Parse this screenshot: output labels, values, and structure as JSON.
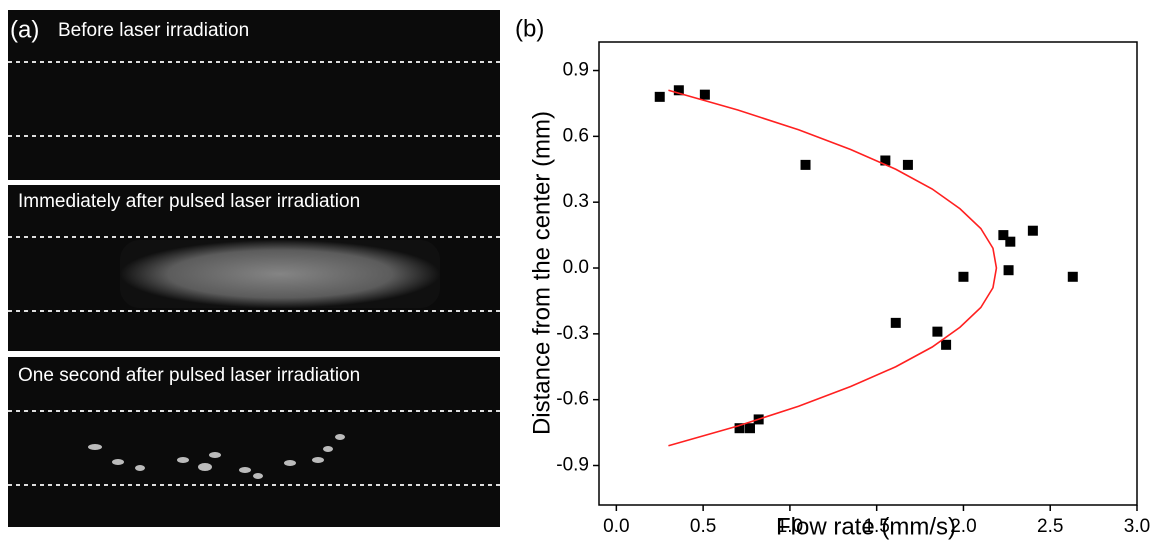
{
  "panel_a": {
    "label": "(a)",
    "captions": [
      "Before laser irradiation",
      "Immediately after pulsed laser irradiation",
      "One second after pulsed laser irradiation"
    ]
  },
  "chart_data": {
    "type": "scatter",
    "label": "(b)",
    "xlabel": "Flow rate (mm/s)",
    "ylabel": "Distance from the center (mm)",
    "xlim": [
      -0.1,
      3.0
    ],
    "ylim": [
      -1.08,
      1.03
    ],
    "xticks": [
      {
        "value": 0,
        "label": "0.0"
      },
      0.5,
      {
        "value": 1,
        "label": "1.0"
      },
      1.5,
      {
        "value": 2,
        "label": "2.0"
      },
      2.5,
      {
        "value": 3,
        "label": "3.0"
      }
    ],
    "yticks": [
      -0.9,
      -0.6,
      -0.3,
      {
        "value": 0,
        "label": "0.0"
      },
      0.3,
      0.6,
      0.9
    ],
    "series": [
      {
        "color": "#000000",
        "marker": "square",
        "x": [
          0.25,
          0.36,
          0.51,
          1.09,
          1.55,
          1.68,
          2.23,
          2.27,
          2.4,
          2.26,
          2.0,
          2.63,
          1.61,
          1.85,
          1.9,
          0.71,
          0.77,
          0.82
        ],
        "values": [
          0.78,
          0.81,
          0.79,
          0.47,
          0.49,
          0.47,
          0.15,
          0.12,
          0.17,
          -0.01,
          -0.04,
          -0.04,
          -0.25,
          -0.29,
          -0.35,
          -0.73,
          -0.73,
          -0.69
        ]
      },
      {
        "color": "#ff2020",
        "marker": "line",
        "x": [
          0.3,
          0.7,
          1.05,
          1.35,
          1.61,
          1.82,
          1.98,
          2.1,
          2.17,
          2.19,
          2.17,
          2.1,
          1.98,
          1.82,
          1.61,
          1.35,
          1.05,
          0.7,
          0.3
        ],
        "values": [
          0.81,
          0.72,
          0.63,
          0.54,
          0.45,
          0.36,
          0.27,
          0.18,
          0.09,
          0,
          -0.09,
          -0.18,
          -0.27,
          -0.36,
          -0.45,
          -0.54,
          -0.63,
          -0.72,
          -0.81
        ]
      }
    ]
  }
}
